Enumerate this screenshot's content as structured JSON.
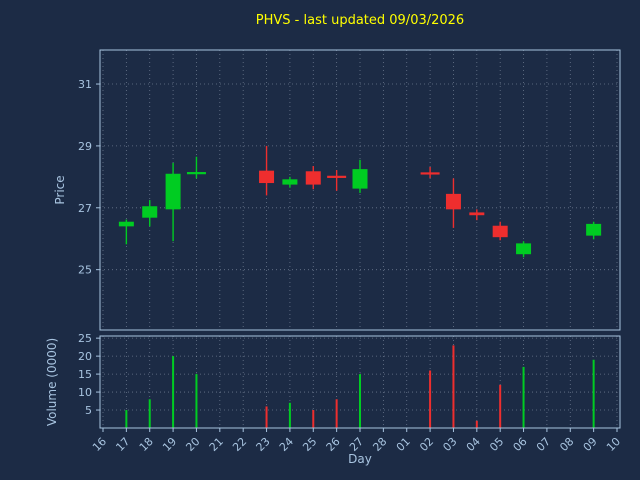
{
  "colors": {
    "background": "#1c2b45",
    "title": "#ffff00",
    "axis_text": "#a8c4e0",
    "spine": "#a8c4e0",
    "grid": "#c9d4e4",
    "up": "#00cc22",
    "down": "#ee2e2e"
  },
  "chart_data": {
    "type": "candlestick",
    "title": "PHVS - last updated 09/03/2026",
    "xlabel": "Day",
    "ylabel_price": "Price",
    "ylabel_volume": "Volume (0000)",
    "x_labels": [
      "16",
      "17",
      "18",
      "19",
      "20",
      "21",
      "22",
      "23",
      "24",
      "25",
      "26",
      "27",
      "28",
      "01",
      "02",
      "03",
      "04",
      "05",
      "06",
      "07",
      "08",
      "09",
      "10"
    ],
    "price_ticks": [
      25,
      27,
      29,
      31
    ],
    "price_ylim": [
      23.05,
      32.1
    ],
    "volume_ticks": [
      5,
      10,
      15,
      20,
      25
    ],
    "volume_ylim": [
      0,
      25.6
    ],
    "grid": "dotted",
    "legend": "none",
    "candles": [
      {
        "day": "17",
        "i": 1,
        "open": 26.4,
        "high": 26.62,
        "low": 25.82,
        "close": 26.55,
        "volume": 5
      },
      {
        "day": "18",
        "i": 2,
        "open": 26.68,
        "high": 27.25,
        "low": 26.4,
        "close": 27.05,
        "volume": 8
      },
      {
        "day": "19",
        "i": 3,
        "open": 26.95,
        "high": 28.45,
        "low": 25.92,
        "close": 28.1,
        "volume": 20
      },
      {
        "day": "20",
        "i": 4,
        "open": 28.1,
        "high": 28.65,
        "low": 27.95,
        "close": 28.14,
        "volume": 15
      },
      {
        "day": "23",
        "i": 7,
        "open": 28.2,
        "high": 29.0,
        "low": 27.4,
        "close": 27.8,
        "volume": 6
      },
      {
        "day": "24",
        "i": 8,
        "open": 27.75,
        "high": 28.0,
        "low": 27.65,
        "close": 27.92,
        "volume": 7
      },
      {
        "day": "25",
        "i": 9,
        "open": 28.18,
        "high": 28.35,
        "low": 27.6,
        "close": 27.75,
        "volume": 5
      },
      {
        "day": "26",
        "i": 10,
        "open": 28.02,
        "high": 28.22,
        "low": 27.55,
        "close": 27.98,
        "volume": 8
      },
      {
        "day": "27",
        "i": 11,
        "open": 27.62,
        "high": 28.55,
        "low": 27.48,
        "close": 28.25,
        "volume": 15
      },
      {
        "day": "02",
        "i": 14,
        "open": 28.14,
        "high": 28.32,
        "low": 27.96,
        "close": 28.08,
        "volume": 16
      },
      {
        "day": "03",
        "i": 15,
        "open": 27.45,
        "high": 27.95,
        "low": 26.35,
        "close": 26.95,
        "volume": 23
      },
      {
        "day": "04",
        "i": 16,
        "open": 26.85,
        "high": 26.95,
        "low": 26.6,
        "close": 26.76,
        "volume": 2
      },
      {
        "day": "05",
        "i": 17,
        "open": 26.42,
        "high": 26.55,
        "low": 25.95,
        "close": 26.05,
        "volume": 12
      },
      {
        "day": "06",
        "i": 18,
        "open": 25.5,
        "high": 25.92,
        "low": 25.4,
        "close": 25.85,
        "volume": 17
      },
      {
        "day": "09",
        "i": 21,
        "open": 26.1,
        "high": 26.55,
        "low": 25.98,
        "close": 26.48,
        "volume": 19
      }
    ]
  }
}
